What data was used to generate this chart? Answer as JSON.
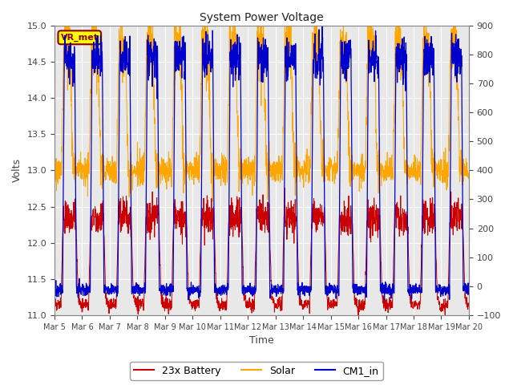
{
  "title": "System Power Voltage",
  "xlabel": "Time",
  "ylabel_left": "Volts",
  "ylabel_right": "",
  "ylim_left": [
    11.0,
    15.0
  ],
  "ylim_right": [
    -100,
    900
  ],
  "yticks_left": [
    11.0,
    11.5,
    12.0,
    12.5,
    13.0,
    13.5,
    14.0,
    14.5,
    15.0
  ],
  "yticks_right": [
    -100,
    0,
    100,
    200,
    300,
    400,
    500,
    600,
    700,
    800,
    900
  ],
  "xtick_labels": [
    "Mar 5",
    "Mar 6",
    "Mar 7",
    "Mar 8",
    "Mar 9",
    "Mar 10",
    "Mar 11",
    "Mar 12",
    "Mar 13",
    "Mar 14",
    "Mar 15",
    "Mar 16",
    "Mar 17",
    "Mar 18",
    "Mar 19",
    "Mar 20"
  ],
  "color_battery": "#cc0000",
  "color_solar": "#ffa500",
  "color_cm1": "#0000cc",
  "legend_labels": [
    "23x Battery",
    "Solar",
    "CM1_in"
  ],
  "annotation_text": "VR_met",
  "annotation_bg": "#ffff00",
  "annotation_border": "#8b0000",
  "grid_color": "#cccccc",
  "plot_bg": "#e8e8e8",
  "fig_bg": "#ffffff",
  "figsize": [
    6.4,
    4.8
  ],
  "dpi": 100
}
